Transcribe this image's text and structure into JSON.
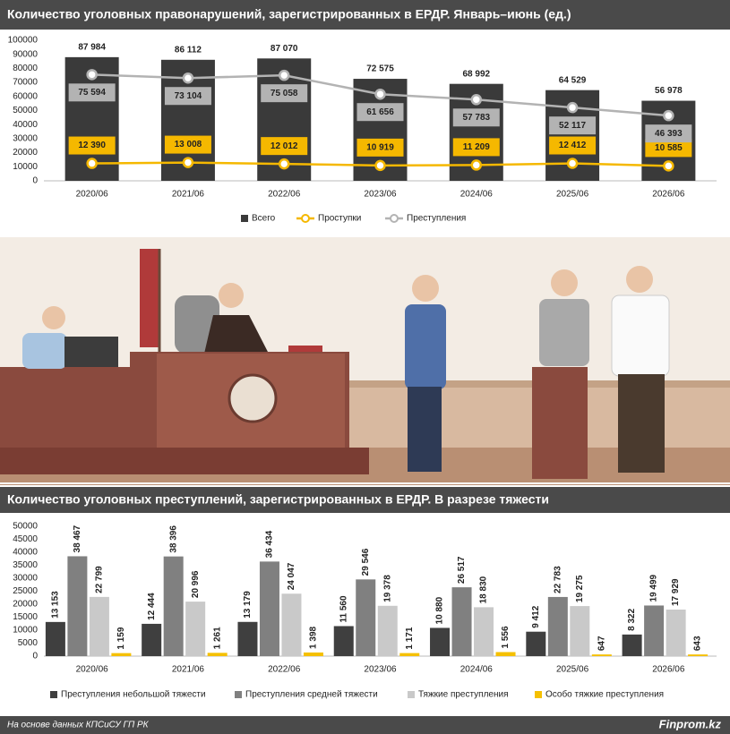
{
  "chart_data": [
    {
      "type": "combo",
      "title": "Количество уголовных правонарушений, зарегистрированных в ЕРДР. Январь–июнь (ед.)",
      "categories": [
        "2020/06",
        "2021/06",
        "2022/06",
        "2023/06",
        "2024/06",
        "2025/06",
        "2026/06"
      ],
      "ylim": [
        0,
        100000
      ],
      "yticks": [
        0,
        10000,
        20000,
        30000,
        40000,
        50000,
        60000,
        70000,
        80000,
        90000,
        100000
      ],
      "grid": false,
      "series": [
        {
          "name": "Всего",
          "type": "bar",
          "color": "#3a3a3a",
          "values": [
            87984,
            86112,
            87070,
            72575,
            68992,
            64529,
            56978
          ],
          "value_labels": [
            "87 984",
            "86 112",
            "87 070",
            "72 575",
            "68 992",
            "64 529",
            "56 978"
          ]
        },
        {
          "name": "Проступки",
          "type": "line",
          "color": "#f5b800",
          "values": [
            12390,
            13008,
            12012,
            10919,
            11209,
            12412,
            10585
          ],
          "value_labels": [
            "12 390",
            "13 008",
            "12 012",
            "10 919",
            "11 209",
            "12 412",
            "10 585"
          ]
        },
        {
          "name": "Преступления",
          "type": "line",
          "color": "#b3b3b3",
          "values": [
            75594,
            73104,
            75058,
            61656,
            57783,
            52117,
            46393
          ],
          "value_labels": [
            "75 594",
            "73 104",
            "75 058",
            "61 656",
            "57 783",
            "52 117",
            "46 393"
          ]
        }
      ]
    },
    {
      "type": "bar",
      "title": "Количество уголовных преступлений, зарегистрированных в ЕРДР. В разрезе тяжести",
      "categories": [
        "2020/06",
        "2021/06",
        "2022/06",
        "2023/06",
        "2024/06",
        "2025/06",
        "2026/06"
      ],
      "ylim": [
        0,
        50000
      ],
      "yticks": [
        0,
        5000,
        10000,
        15000,
        20000,
        25000,
        30000,
        35000,
        40000,
        45000,
        50000
      ],
      "grid": false,
      "series": [
        {
          "name": "Преступления небольшой тяжести",
          "color": "#3f3f3f",
          "values": [
            13153,
            12444,
            13179,
            11560,
            10880,
            9412,
            8322
          ],
          "value_labels": [
            "13 153",
            "12 444",
            "13 179",
            "11 560",
            "10 880",
            "9 412",
            "8 322"
          ]
        },
        {
          "name": "Преступления средней тяжести",
          "color": "#808080",
          "values": [
            38467,
            38396,
            36434,
            29546,
            26517,
            22783,
            19499
          ],
          "value_labels": [
            "38 467",
            "38 396",
            "36 434",
            "29 546",
            "26 517",
            "22 783",
            "19 499"
          ]
        },
        {
          "name": "Тяжкие преступления",
          "color": "#c9c9c9",
          "values": [
            22799,
            20996,
            24047,
            19378,
            18830,
            19275,
            17929
          ],
          "value_labels": [
            "22 799",
            "20 996",
            "24 047",
            "19 378",
            "18 830",
            "19 275",
            "17 929"
          ]
        },
        {
          "name": "Особо тяжкие преступления",
          "color": "#f5c000",
          "values": [
            1159,
            1261,
            1398,
            1171,
            1556,
            647,
            643
          ],
          "value_labels": [
            "1 159",
            "1 261",
            "1 398",
            "1 171",
            "1 556",
            "647",
            "643"
          ]
        }
      ]
    }
  ],
  "footer": {
    "source": "На основе данных КПСиСУ ГП РК",
    "brand": "Finprom.kz"
  }
}
